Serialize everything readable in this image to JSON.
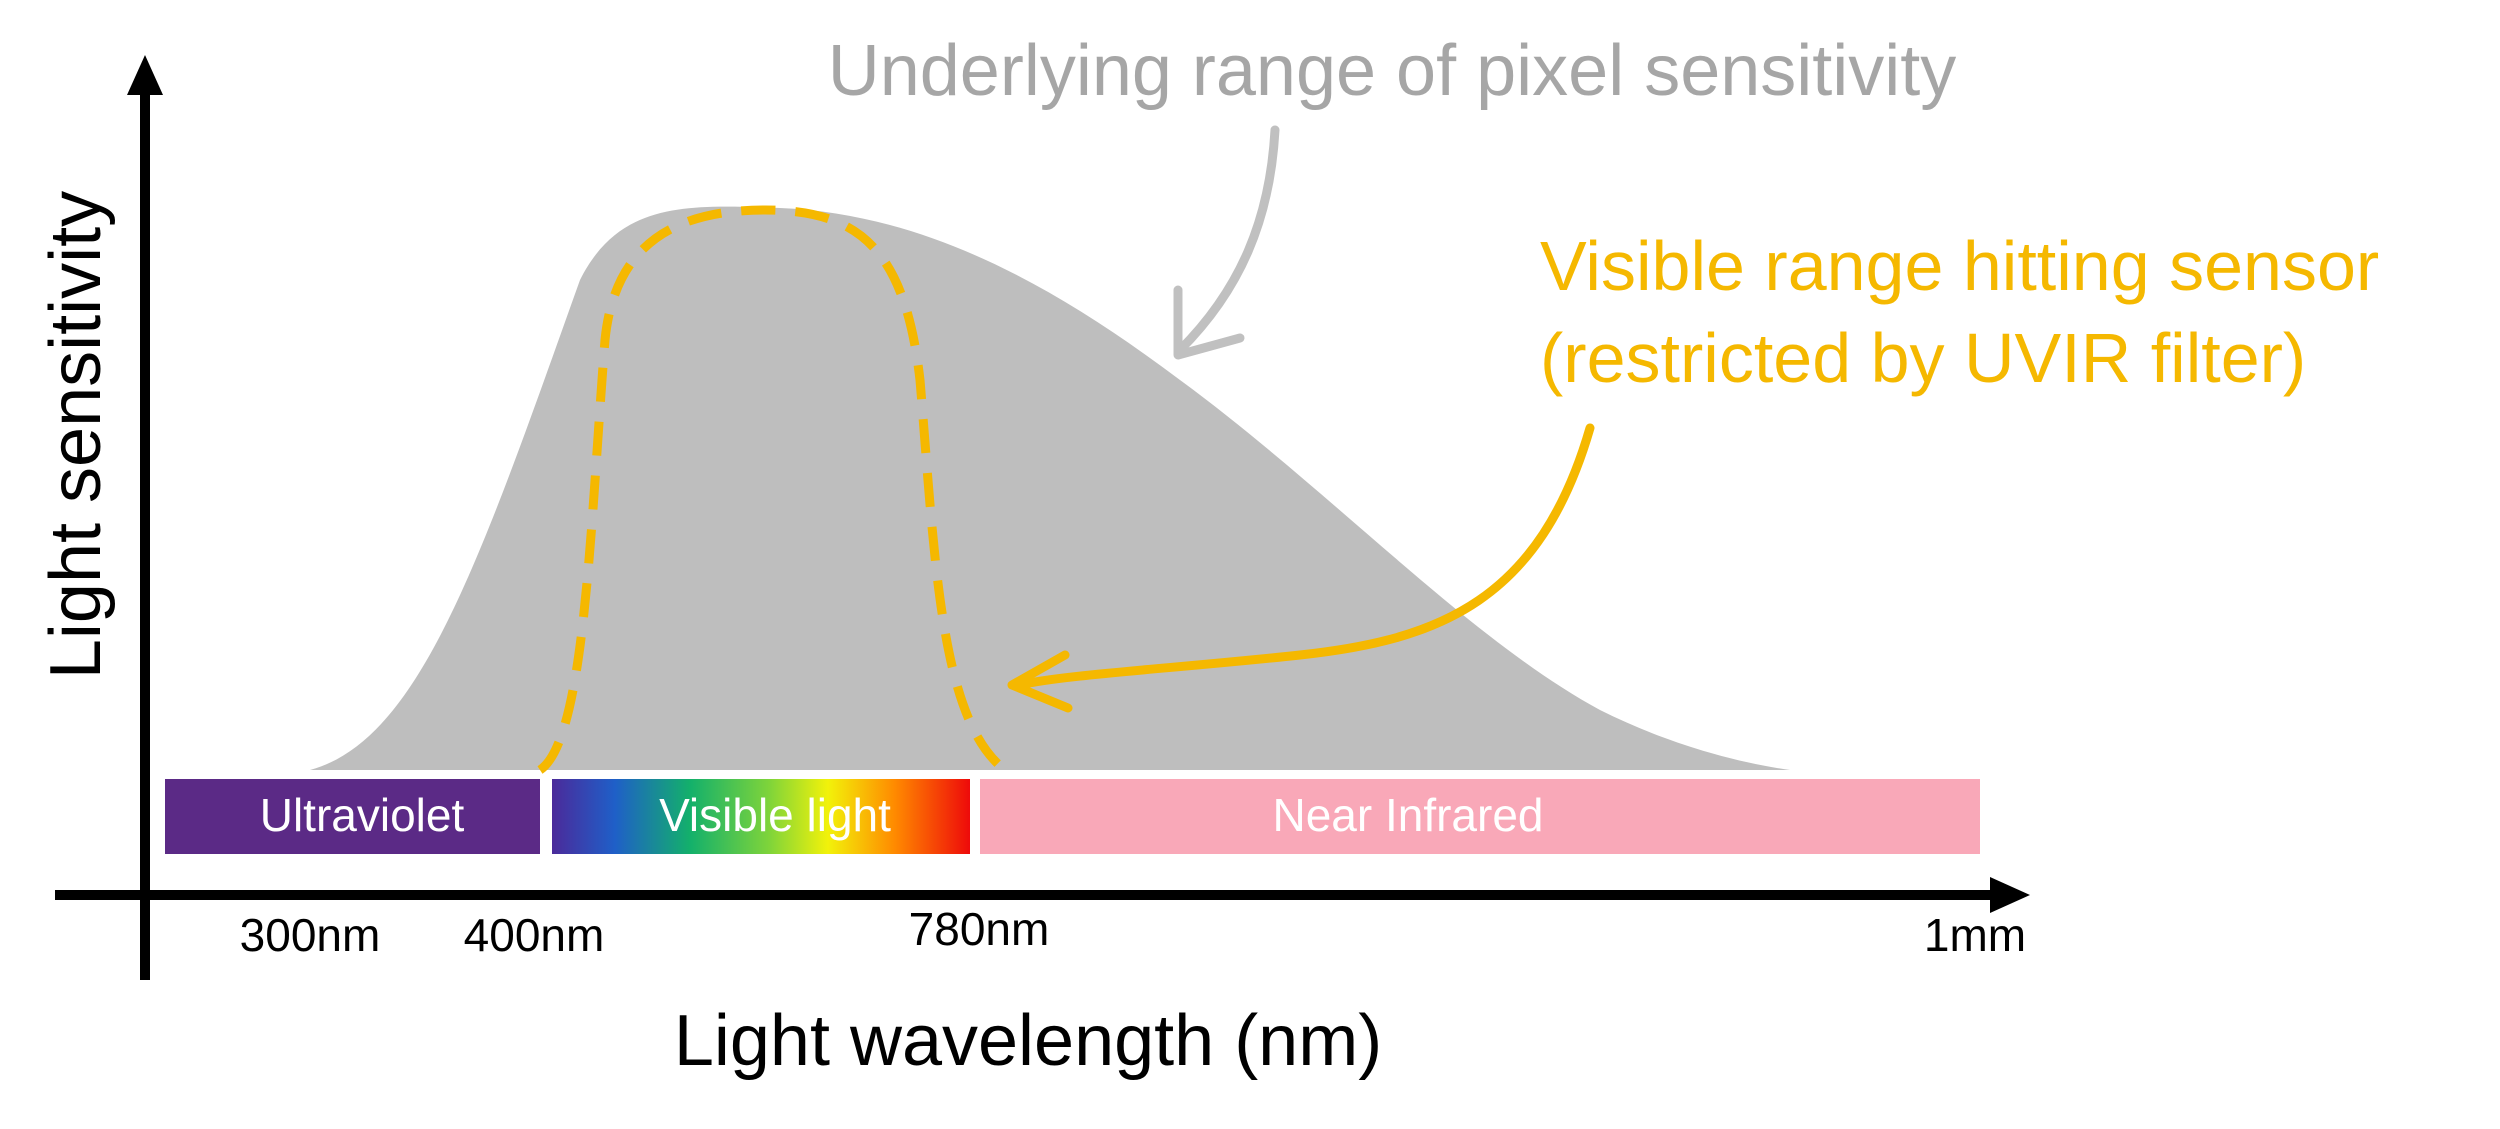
{
  "title_annotation": "Underlying range of pixel sensitivity",
  "visible_annotation": {
    "line1": "Visible range hitting sensor",
    "line2": "(restricted by UVIR filter)"
  },
  "y_axis_label": "Light sensitivity",
  "x_axis_label": "Light wavelength (nm)",
  "bands": [
    {
      "label": "Ultraviolet",
      "color": "#5b2a86"
    },
    {
      "label": "Visible light",
      "color": "spectrum"
    },
    {
      "label": "Near Infrared",
      "color": "#f9a8b8"
    }
  ],
  "ticks": [
    "300nm",
    "400nm",
    "780nm",
    "1mm"
  ],
  "colors": {
    "sensitivity_fill": "#bebebe",
    "annotation_gray": "#a6a6a6",
    "annotation_yellow": "#f5b800",
    "axis": "#000000"
  }
}
